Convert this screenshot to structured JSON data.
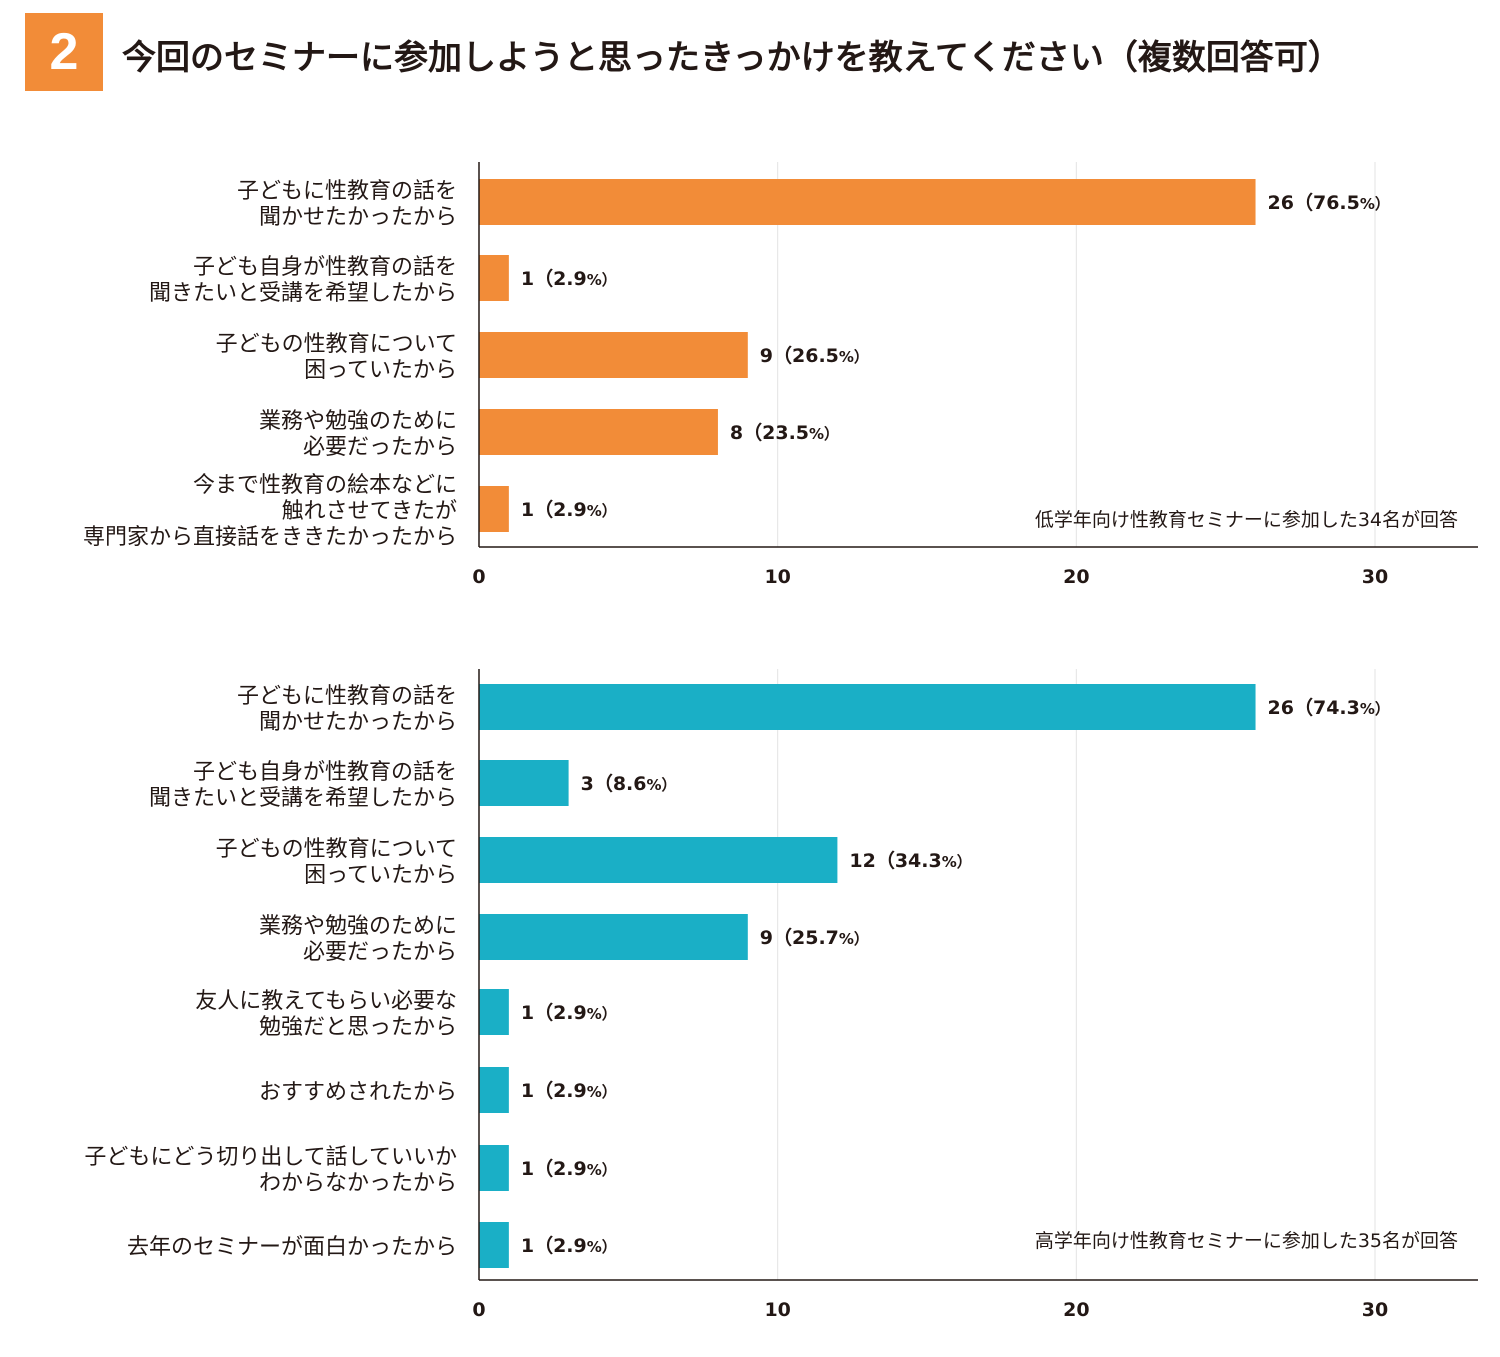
{
  "header": {
    "number": "2",
    "title": "今回のセミナーに参加しようと思ったきっかけを教えてください（複数回答可）"
  },
  "chart_data": [
    {
      "type": "bar",
      "orientation": "horizontal",
      "color": "#F28C38",
      "note": "低学年向け性教育セミナーに参加した34名が回答",
      "xlim": [
        0,
        33
      ],
      "xticks": [
        0,
        10,
        20,
        30
      ],
      "xtick_labels": [
        "0",
        "10",
        "20",
        "30"
      ],
      "categories": [
        [
          "子どもに性教育の話を",
          "聞かせたかったから"
        ],
        [
          "子ども自身が性教育の話を",
          "聞きたいと受講を希望したから"
        ],
        [
          "子どもの性教育について",
          "困っていたから"
        ],
        [
          "業務や勉強のために",
          "必要だったから"
        ],
        [
          "今まで性教育の絵本などに",
          "触れさせてきたが",
          "専門家から直接話をききたかったから"
        ]
      ],
      "values": [
        26,
        1,
        9,
        8,
        1
      ],
      "value_labels": [
        "26（76.5",
        "1（2.9",
        "9（26.5",
        "8（23.5",
        "1（2.9"
      ],
      "label_suffix": [
        "%）",
        "%）",
        "%）",
        "%）",
        "%）"
      ]
    },
    {
      "type": "bar",
      "orientation": "horizontal",
      "color": "#1AAFC6",
      "note": "高学年向け性教育セミナーに参加した35名が回答",
      "xlim": [
        0,
        33
      ],
      "xticks": [
        0,
        10,
        20,
        30
      ],
      "xtick_labels": [
        "0",
        "10",
        "20",
        "30"
      ],
      "categories": [
        [
          "子どもに性教育の話を",
          "聞かせたかったから"
        ],
        [
          "子ども自身が性教育の話を",
          "聞きたいと受講を希望したから"
        ],
        [
          "子どもの性教育について",
          "困っていたから"
        ],
        [
          "業務や勉強のために",
          "必要だったから"
        ],
        [
          "友人に教えてもらい必要な",
          "勉強だと思ったから"
        ],
        [
          "おすすめされたから"
        ],
        [
          "子どもにどう切り出して話していいか",
          "わからなかったから"
        ],
        [
          "去年のセミナーが面白かったから"
        ]
      ],
      "values": [
        26,
        3,
        12,
        9,
        1,
        1,
        1,
        1
      ],
      "value_labels": [
        "26（74.3",
        "3（8.6",
        "12（34.3",
        "9（25.7",
        "1（2.9",
        "1（2.9",
        "1（2.9",
        "1（2.9"
      ],
      "label_suffix": [
        "%）",
        "%）",
        "%）",
        "%）",
        "%）",
        "%）",
        "%）",
        "%）"
      ]
    }
  ]
}
